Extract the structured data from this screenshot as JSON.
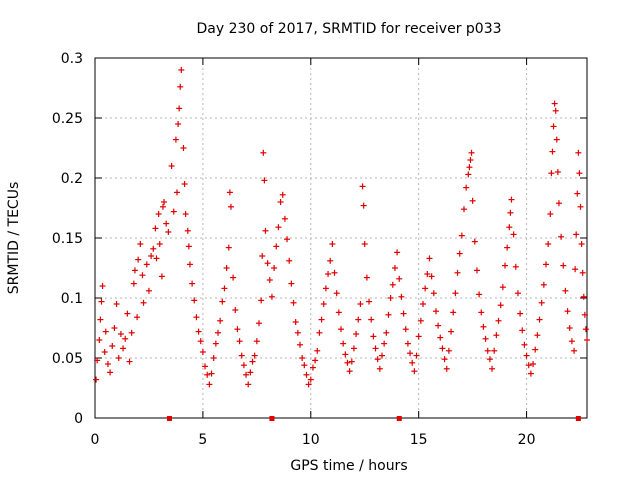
{
  "chart_data": {
    "type": "scatter",
    "title": "Day 230 of 2017, SRMTID for receiver p033",
    "xlabel": "GPS time / hours",
    "ylabel": "SRMTID / TECUs",
    "xlim": [
      0,
      22.8
    ],
    "ylim": [
      0,
      0.3
    ],
    "x_ticks": [
      0,
      5,
      10,
      15,
      20
    ],
    "x_tick_labels": [
      "0",
      "5",
      "10",
      "15",
      "20"
    ],
    "y_ticks": [
      0,
      0.05,
      0.1,
      0.15,
      0.2,
      0.25,
      0.3
    ],
    "y_tick_labels": [
      "0",
      "0.05",
      "0.1",
      "0.15",
      "0.2",
      "0.25",
      "0.3"
    ],
    "grid": true,
    "marker": "plus",
    "series_color": "#e00000",
    "marker_color": "#e00000",
    "baseline_marks_x": [
      3.45,
      8.2,
      14.1,
      22.4
    ],
    "series": [
      {
        "name": "SRMTID",
        "points": [
          [
            0.05,
            0.032
          ],
          [
            0.1,
            0.048
          ],
          [
            0.2,
            0.065
          ],
          [
            0.25,
            0.082
          ],
          [
            0.3,
            0.097
          ],
          [
            0.35,
            0.11
          ],
          [
            0.45,
            0.055
          ],
          [
            0.5,
            0.072
          ],
          [
            0.6,
            0.045
          ],
          [
            0.7,
            0.038
          ],
          [
            0.8,
            0.06
          ],
          [
            0.9,
            0.075
          ],
          [
            1.0,
            0.095
          ],
          [
            1.1,
            0.05
          ],
          [
            1.2,
            0.07
          ],
          [
            1.3,
            0.058
          ],
          [
            1.4,
            0.066
          ],
          [
            1.5,
            0.087
          ],
          [
            1.6,
            0.047
          ],
          [
            1.7,
            0.071
          ],
          [
            1.8,
            0.112
          ],
          [
            1.85,
            0.123
          ],
          [
            1.95,
            0.084
          ],
          [
            2.0,
            0.132
          ],
          [
            2.1,
            0.145
          ],
          [
            2.2,
            0.119
          ],
          [
            2.25,
            0.096
          ],
          [
            2.4,
            0.128
          ],
          [
            2.5,
            0.106
          ],
          [
            2.6,
            0.135
          ],
          [
            2.7,
            0.141
          ],
          [
            2.8,
            0.158
          ],
          [
            2.85,
            0.133
          ],
          [
            2.95,
            0.17
          ],
          [
            3.0,
            0.145
          ],
          [
            3.1,
            0.118
          ],
          [
            3.15,
            0.176
          ],
          [
            3.2,
            0.18
          ],
          [
            3.3,
            0.162
          ],
          [
            3.4,
            0.155
          ],
          [
            3.55,
            0.21
          ],
          [
            3.65,
            0.172
          ],
          [
            3.75,
            0.232
          ],
          [
            3.8,
            0.188
          ],
          [
            3.85,
            0.245
          ],
          [
            3.9,
            0.258
          ],
          [
            3.95,
            0.276
          ],
          [
            4.0,
            0.29
          ],
          [
            4.1,
            0.225
          ],
          [
            4.15,
            0.195
          ],
          [
            4.2,
            0.17
          ],
          [
            4.3,
            0.156
          ],
          [
            4.35,
            0.143
          ],
          [
            4.4,
            0.128
          ],
          [
            4.5,
            0.112
          ],
          [
            4.6,
            0.098
          ],
          [
            4.7,
            0.084
          ],
          [
            4.8,
            0.072
          ],
          [
            4.9,
            0.064
          ],
          [
            5.0,
            0.055
          ],
          [
            5.1,
            0.043
          ],
          [
            5.2,
            0.036
          ],
          [
            5.3,
            0.028
          ],
          [
            5.4,
            0.037
          ],
          [
            5.5,
            0.05
          ],
          [
            5.6,
            0.062
          ],
          [
            5.7,
            0.071
          ],
          [
            5.8,
            0.081
          ],
          [
            5.9,
            0.097
          ],
          [
            6.0,
            0.108
          ],
          [
            6.1,
            0.125
          ],
          [
            6.2,
            0.142
          ],
          [
            6.25,
            0.188
          ],
          [
            6.3,
            0.176
          ],
          [
            6.4,
            0.117
          ],
          [
            6.5,
            0.09
          ],
          [
            6.6,
            0.074
          ],
          [
            6.7,
            0.064
          ],
          [
            6.8,
            0.052
          ],
          [
            6.9,
            0.044
          ],
          [
            7.0,
            0.036
          ],
          [
            7.1,
            0.028
          ],
          [
            7.2,
            0.038
          ],
          [
            7.3,
            0.047
          ],
          [
            7.4,
            0.052
          ],
          [
            7.5,
            0.064
          ],
          [
            7.6,
            0.079
          ],
          [
            7.7,
            0.098
          ],
          [
            7.75,
            0.135
          ],
          [
            7.8,
            0.221
          ],
          [
            7.85,
            0.198
          ],
          [
            7.9,
            0.156
          ],
          [
            8.0,
            0.129
          ],
          [
            8.1,
            0.115
          ],
          [
            8.2,
            0.101
          ],
          [
            8.3,
            0.125
          ],
          [
            8.4,
            0.143
          ],
          [
            8.5,
            0.159
          ],
          [
            8.6,
            0.18
          ],
          [
            8.7,
            0.186
          ],
          [
            8.8,
            0.166
          ],
          [
            8.9,
            0.149
          ],
          [
            9.0,
            0.131
          ],
          [
            9.1,
            0.112
          ],
          [
            9.2,
            0.096
          ],
          [
            9.3,
            0.08
          ],
          [
            9.4,
            0.071
          ],
          [
            9.5,
            0.061
          ],
          [
            9.6,
            0.05
          ],
          [
            9.7,
            0.044
          ],
          [
            9.8,
            0.036
          ],
          [
            9.9,
            0.028
          ],
          [
            10.0,
            0.032
          ],
          [
            10.1,
            0.042
          ],
          [
            10.2,
            0.048
          ],
          [
            10.3,
            0.056
          ],
          [
            10.4,
            0.071
          ],
          [
            10.5,
            0.082
          ],
          [
            10.6,
            0.095
          ],
          [
            10.7,
            0.108
          ],
          [
            10.8,
            0.12
          ],
          [
            10.9,
            0.131
          ],
          [
            11.0,
            0.145
          ],
          [
            11.1,
            0.121
          ],
          [
            11.2,
            0.104
          ],
          [
            11.3,
            0.088
          ],
          [
            11.4,
            0.074
          ],
          [
            11.5,
            0.062
          ],
          [
            11.6,
            0.053
          ],
          [
            11.7,
            0.046
          ],
          [
            11.8,
            0.039
          ],
          [
            11.9,
            0.047
          ],
          [
            12.0,
            0.058
          ],
          [
            12.1,
            0.07
          ],
          [
            12.2,
            0.082
          ],
          [
            12.3,
            0.095
          ],
          [
            12.4,
            0.193
          ],
          [
            12.45,
            0.177
          ],
          [
            12.5,
            0.145
          ],
          [
            12.6,
            0.117
          ],
          [
            12.7,
            0.097
          ],
          [
            12.8,
            0.082
          ],
          [
            12.9,
            0.068
          ],
          [
            13.0,
            0.058
          ],
          [
            13.1,
            0.049
          ],
          [
            13.2,
            0.041
          ],
          [
            13.3,
            0.052
          ],
          [
            13.4,
            0.062
          ],
          [
            13.5,
            0.071
          ],
          [
            13.6,
            0.086
          ],
          [
            13.7,
            0.1
          ],
          [
            13.8,
            0.111
          ],
          [
            13.9,
            0.125
          ],
          [
            14.0,
            0.138
          ],
          [
            14.1,
            0.116
          ],
          [
            14.2,
            0.101
          ],
          [
            14.3,
            0.087
          ],
          [
            14.4,
            0.074
          ],
          [
            14.5,
            0.062
          ],
          [
            14.6,
            0.054
          ],
          [
            14.7,
            0.046
          ],
          [
            14.8,
            0.039
          ],
          [
            14.9,
            0.052
          ],
          [
            15.0,
            0.068
          ],
          [
            15.1,
            0.081
          ],
          [
            15.2,
            0.095
          ],
          [
            15.3,
            0.108
          ],
          [
            15.4,
            0.12
          ],
          [
            15.5,
            0.133
          ],
          [
            15.6,
            0.118
          ],
          [
            15.7,
            0.104
          ],
          [
            15.8,
            0.089
          ],
          [
            15.9,
            0.077
          ],
          [
            16.0,
            0.067
          ],
          [
            16.1,
            0.058
          ],
          [
            16.2,
            0.049
          ],
          [
            16.3,
            0.041
          ],
          [
            16.4,
            0.056
          ],
          [
            16.5,
            0.072
          ],
          [
            16.6,
            0.088
          ],
          [
            16.7,
            0.104
          ],
          [
            16.8,
            0.121
          ],
          [
            16.9,
            0.137
          ],
          [
            17.0,
            0.152
          ],
          [
            17.1,
            0.174
          ],
          [
            17.2,
            0.192
          ],
          [
            17.3,
            0.203
          ],
          [
            17.35,
            0.209
          ],
          [
            17.4,
            0.215
          ],
          [
            17.45,
            0.221
          ],
          [
            17.5,
            0.181
          ],
          [
            17.6,
            0.147
          ],
          [
            17.7,
            0.123
          ],
          [
            17.8,
            0.103
          ],
          [
            17.9,
            0.088
          ],
          [
            18.0,
            0.076
          ],
          [
            18.1,
            0.066
          ],
          [
            18.2,
            0.056
          ],
          [
            18.3,
            0.049
          ],
          [
            18.4,
            0.041
          ],
          [
            18.5,
            0.056
          ],
          [
            18.6,
            0.069
          ],
          [
            18.7,
            0.081
          ],
          [
            18.8,
            0.094
          ],
          [
            18.9,
            0.109
          ],
          [
            19.0,
            0.127
          ],
          [
            19.1,
            0.142
          ],
          [
            19.2,
            0.159
          ],
          [
            19.25,
            0.171
          ],
          [
            19.3,
            0.182
          ],
          [
            19.4,
            0.153
          ],
          [
            19.5,
            0.126
          ],
          [
            19.6,
            0.104
          ],
          [
            19.7,
            0.087
          ],
          [
            19.8,
            0.073
          ],
          [
            19.9,
            0.061
          ],
          [
            20.0,
            0.052
          ],
          [
            20.1,
            0.044
          ],
          [
            20.2,
            0.037
          ],
          [
            20.3,
            0.045
          ],
          [
            20.4,
            0.057
          ],
          [
            20.5,
            0.069
          ],
          [
            20.6,
            0.082
          ],
          [
            20.7,
            0.096
          ],
          [
            20.8,
            0.111
          ],
          [
            20.9,
            0.128
          ],
          [
            21.0,
            0.145
          ],
          [
            21.1,
            0.17
          ],
          [
            21.15,
            0.204
          ],
          [
            21.2,
            0.222
          ],
          [
            21.25,
            0.243
          ],
          [
            21.3,
            0.262
          ],
          [
            21.35,
            0.256
          ],
          [
            21.4,
            0.232
          ],
          [
            21.45,
            0.205
          ],
          [
            21.5,
            0.179
          ],
          [
            21.6,
            0.151
          ],
          [
            21.7,
            0.127
          ],
          [
            21.8,
            0.106
          ],
          [
            21.9,
            0.089
          ],
          [
            22.0,
            0.075
          ],
          [
            22.1,
            0.064
          ],
          [
            22.2,
            0.056
          ],
          [
            22.25,
            0.124
          ],
          [
            22.3,
            0.153
          ],
          [
            22.35,
            0.187
          ],
          [
            22.4,
            0.221
          ],
          [
            22.45,
            0.204
          ],
          [
            22.5,
            0.176
          ],
          [
            22.55,
            0.145
          ],
          [
            22.6,
            0.121
          ],
          [
            22.65,
            0.101
          ],
          [
            22.7,
            0.086
          ],
          [
            22.75,
            0.074
          ],
          [
            22.8,
            0.065
          ]
        ]
      }
    ]
  }
}
